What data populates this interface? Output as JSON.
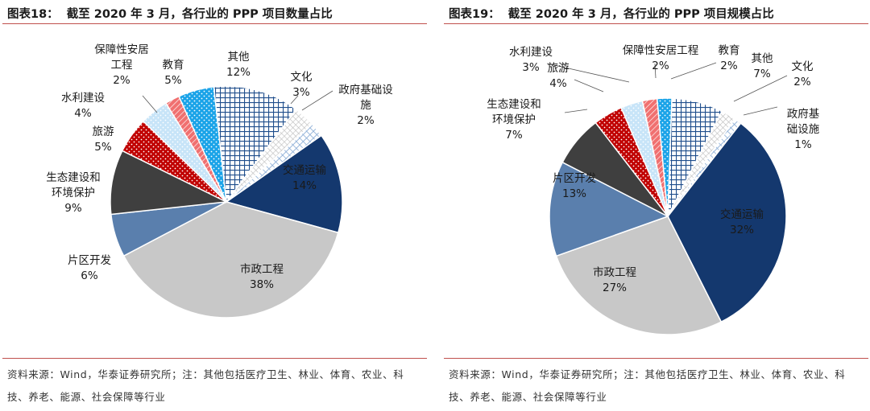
{
  "source_note": "资料来源：Wind，华泰证券研究所；注：其他包括医疗卫生、林业、体育、农业、科技、养老、能源、社会保障等行业",
  "colors": {
    "accent_rule": "#c0504d",
    "transport": "#14386e",
    "municipal": "#c8c8c8",
    "area_dev": "#5a7fad",
    "eco": "#3f3f3f",
    "tourism": "#c00000",
    "water": "#c7e4f8",
    "housing": "#f07070",
    "education": "#1aa3e8",
    "other": "#1f4e8c",
    "culture": "#d9d9d9",
    "govinfra": "#8fb0d8"
  },
  "chart_data": [
    {
      "type": "pie",
      "figure_number": "图表18：",
      "title": "截至 2020 年 3 月，各行业的 PPP 项目数量占比",
      "slices": [
        {
          "id": "transport",
          "name": "交通运输",
          "value": 14,
          "label": "14%",
          "fill": "transport",
          "pattern": "solid"
        },
        {
          "id": "municipal",
          "name": "市政工程",
          "value": 38,
          "label": "38%",
          "fill": "municipal",
          "pattern": "solid"
        },
        {
          "id": "area_dev",
          "name": "片区开发",
          "value": 6,
          "label": "6%",
          "fill": "area_dev",
          "pattern": "solid"
        },
        {
          "id": "eco",
          "name": "生态建设和环境保护",
          "value": 9,
          "label": "9%",
          "fill": "eco",
          "pattern": "solid"
        },
        {
          "id": "tourism",
          "name": "旅游",
          "value": 5,
          "label": "5%",
          "fill": "tourism",
          "pattern": "dots"
        },
        {
          "id": "water",
          "name": "水利建设",
          "value": 4,
          "label": "4%",
          "fill": "water",
          "pattern": "dots"
        },
        {
          "id": "housing",
          "name": "保障性安居工程",
          "value": 2,
          "label": "2%",
          "fill": "housing",
          "pattern": "diag"
        },
        {
          "id": "education",
          "name": "教育",
          "value": 5,
          "label": "5%",
          "fill": "education",
          "pattern": "dots"
        },
        {
          "id": "other",
          "name": "其他",
          "value": 12,
          "label": "12%",
          "fill": "other",
          "pattern": "grid"
        },
        {
          "id": "culture",
          "name": "文化",
          "value": 3,
          "label": "3%",
          "fill": "culture",
          "pattern": "cross"
        },
        {
          "id": "govinfra",
          "name": "政府基础设施",
          "value": 2,
          "label": "2%",
          "fill": "govinfra",
          "pattern": "diamond"
        }
      ]
    },
    {
      "type": "pie",
      "figure_number": "图表19：",
      "title": "截至 2020 年 3 月，各行业的 PPP 项目规模占比",
      "slices": [
        {
          "id": "transport",
          "name": "交通运输",
          "value": 32,
          "label": "32%",
          "fill": "transport",
          "pattern": "solid"
        },
        {
          "id": "municipal",
          "name": "市政工程",
          "value": 27,
          "label": "27%",
          "fill": "municipal",
          "pattern": "solid"
        },
        {
          "id": "area_dev",
          "name": "片区开发",
          "value": 13,
          "label": "13%",
          "fill": "area_dev",
          "pattern": "solid"
        },
        {
          "id": "eco",
          "name": "生态建设和环境保护",
          "value": 7,
          "label": "7%",
          "fill": "eco",
          "pattern": "solid"
        },
        {
          "id": "tourism",
          "name": "旅游",
          "value": 4,
          "label": "4%",
          "fill": "tourism",
          "pattern": "dots"
        },
        {
          "id": "water",
          "name": "水利建设",
          "value": 3,
          "label": "3%",
          "fill": "water",
          "pattern": "dots"
        },
        {
          "id": "housing",
          "name": "保障性安居工程",
          "value": 2,
          "label": "2%",
          "fill": "housing",
          "pattern": "diag"
        },
        {
          "id": "education",
          "name": "教育",
          "value": 2,
          "label": "2%",
          "fill": "education",
          "pattern": "dots"
        },
        {
          "id": "other",
          "name": "其他",
          "value": 7,
          "label": "7%",
          "fill": "other",
          "pattern": "grid"
        },
        {
          "id": "culture",
          "name": "文化",
          "value": 2,
          "label": "2%",
          "fill": "culture",
          "pattern": "cross"
        },
        {
          "id": "govinfra",
          "name": "政府基础设施",
          "value": 1,
          "label": "1%",
          "fill": "govinfra",
          "pattern": "diamond"
        }
      ]
    }
  ]
}
